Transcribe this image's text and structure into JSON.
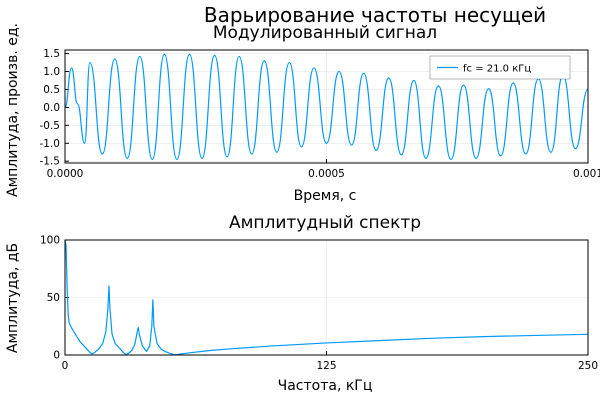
{
  "figure": {
    "suptitle": "Варьирование частоты несущей",
    "line_color": "#009AFA"
  },
  "chart_data": [
    {
      "type": "line",
      "title": "Модулированный сигнал",
      "xlabel": "Время, с",
      "ylabel": "Амплитуда, произв. ед.",
      "xlim": [
        0,
        0.001
      ],
      "ylim": [
        -1.55,
        1.6
      ],
      "xticks": [
        0,
        0.0005,
        0.001
      ],
      "xtick_labels": [
        "0.0000",
        "0.0005",
        "0.001"
      ],
      "yticks": [
        -1.5,
        -1.0,
        -0.5,
        0.0,
        0.5,
        1.0,
        1.5
      ],
      "ytick_labels": [
        "-1.5",
        "-1.0",
        "-0.5",
        "0.0",
        "0.5",
        "1.0",
        "1.5"
      ],
      "grid": true,
      "legend_position": "top-right",
      "series": [
        {
          "name": "fc = 21.0 кГц",
          "carrier_frequency_hz": 21000,
          "points": [
            [
              0.0,
              0.0
            ],
            [
              1.25e-05,
              1.1
            ],
            [
              2.38e-05,
              0.1
            ],
            [
              3.75e-05,
              -1.0
            ],
            [
              4.76e-05,
              1.25
            ],
            [
              7.14e-05,
              -1.3
            ],
            [
              9.52e-05,
              1.35
            ],
            [
              0.000119,
              -1.42
            ],
            [
              0.000143,
              1.42
            ],
            [
              0.000167,
              -1.45
            ],
            [
              0.00019,
              1.48
            ],
            [
              0.000214,
              -1.45
            ],
            [
              0.000238,
              1.48
            ],
            [
              0.000262,
              -1.42
            ],
            [
              0.000286,
              1.45
            ],
            [
              0.00031,
              -1.38
            ],
            [
              0.000333,
              1.42
            ],
            [
              0.000357,
              -1.3
            ],
            [
              0.000381,
              1.3
            ],
            [
              0.000405,
              -1.25
            ],
            [
              0.000429,
              1.25
            ],
            [
              0.000452,
              -1.1
            ],
            [
              0.000476,
              1.1
            ],
            [
              0.0005,
              -1.0
            ],
            [
              0.000524,
              1.0
            ],
            [
              0.000548,
              -1.05
            ],
            [
              0.000571,
              0.95
            ],
            [
              0.000595,
              -1.2
            ],
            [
              0.000619,
              0.82
            ],
            [
              0.000643,
              -1.32
            ],
            [
              0.000667,
              0.75
            ],
            [
              0.00069,
              -1.42
            ],
            [
              0.000714,
              0.6
            ],
            [
              0.000738,
              -1.45
            ],
            [
              0.000762,
              0.62
            ],
            [
              0.000786,
              -1.42
            ],
            [
              0.00081,
              0.52
            ],
            [
              0.000833,
              -1.35
            ],
            [
              0.000857,
              0.68
            ],
            [
              0.000881,
              -1.3
            ],
            [
              0.000905,
              0.8
            ],
            [
              0.000929,
              -1.25
            ],
            [
              0.000952,
              0.9
            ],
            [
              0.000976,
              -1.15
            ],
            [
              0.001,
              0.5
            ]
          ]
        }
      ]
    },
    {
      "type": "line",
      "title": "Амплитудный спектр",
      "xlabel": "Частота, кГц",
      "ylabel": "Амплитуда,  дБ",
      "xlim": [
        0,
        250
      ],
      "ylim": [
        0,
        100
      ],
      "xticks": [
        0,
        125,
        250
      ],
      "xtick_labels": [
        "0",
        "125",
        "250"
      ],
      "yticks": [
        0,
        50,
        100
      ],
      "ytick_labels": [
        "0",
        "50",
        "100"
      ],
      "grid": true,
      "series": [
        {
          "points": [
            [
              0,
              100
            ],
            [
              0.5,
              95
            ],
            [
              1,
              60
            ],
            [
              1.5,
              35
            ],
            [
              2,
              28
            ],
            [
              3,
              24
            ],
            [
              5,
              18
            ],
            [
              7,
              12
            ],
            [
              9,
              8
            ],
            [
              11,
              4
            ],
            [
              12,
              2
            ],
            [
              13,
              1
            ],
            [
              14,
              2
            ],
            [
              16,
              5
            ],
            [
              18,
              10
            ],
            [
              19.5,
              20
            ],
            [
              20.5,
              40
            ],
            [
              21,
              60
            ],
            [
              21.5,
              40
            ],
            [
              22.5,
              18
            ],
            [
              24,
              10
            ],
            [
              26,
              6
            ],
            [
              28,
              2
            ],
            [
              29,
              0.5
            ],
            [
              30,
              1
            ],
            [
              32,
              4
            ],
            [
              33.5,
              10
            ],
            [
              34.5,
              20
            ],
            [
              35,
              24
            ],
            [
              35.5,
              18
            ],
            [
              37,
              8
            ],
            [
              39,
              3
            ],
            [
              40.5,
              8
            ],
            [
              41.5,
              25
            ],
            [
              42,
              48
            ],
            [
              42.5,
              25
            ],
            [
              44,
              10
            ],
            [
              46,
              5
            ],
            [
              48,
              3
            ],
            [
              50,
              1.5
            ],
            [
              52,
              0.5
            ],
            [
              53,
              0.2
            ],
            [
              55,
              0.8
            ],
            [
              60,
              2
            ],
            [
              70,
              4
            ],
            [
              80,
              5.5
            ],
            [
              100,
              8
            ],
            [
              125,
              10.5
            ],
            [
              150,
              12.5
            ],
            [
              175,
              14.5
            ],
            [
              200,
              16
            ],
            [
              225,
              17
            ],
            [
              250,
              18
            ]
          ]
        }
      ]
    }
  ]
}
